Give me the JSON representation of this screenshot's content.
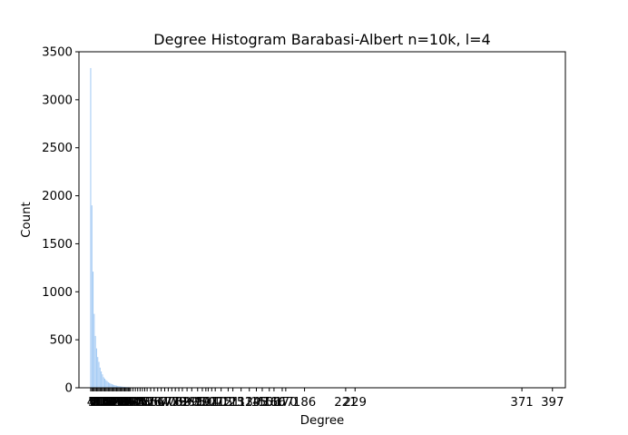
{
  "chart_data": {
    "type": "bar",
    "title": "Degree Histogram Barabasi-Albert n=10k, l=4",
    "xlabel": "Degree",
    "ylabel": "Count",
    "xlim": [
      -6,
      408
    ],
    "ylim": [
      0,
      3500
    ],
    "yticks": [
      0,
      500,
      1000,
      1500,
      2000,
      2500,
      3000,
      3500
    ],
    "bar_color": "#a1c9f4",
    "x": [
      4,
      5,
      6,
      7,
      8,
      9,
      10,
      11,
      12,
      13,
      14,
      15,
      16,
      17,
      18,
      19,
      20,
      21,
      22,
      23,
      24,
      25,
      26,
      27,
      28,
      29,
      30,
      31,
      32,
      33,
      34,
      35,
      36,
      37,
      38,
      40,
      42,
      44,
      46,
      48,
      50,
      52,
      55,
      58,
      61,
      64,
      67,
      70,
      73,
      76,
      79,
      82,
      86,
      90,
      95,
      99,
      102,
      104,
      107,
      110,
      115,
      121,
      125,
      132,
      139,
      145,
      150,
      156,
      160,
      167,
      170,
      186,
      221,
      229,
      371,
      397
    ],
    "values": [
      3330,
      1900,
      1210,
      770,
      540,
      410,
      320,
      270,
      210,
      170,
      140,
      110,
      95,
      80,
      70,
      58,
      50,
      44,
      38,
      33,
      28,
      25,
      22,
      19,
      17,
      15,
      13,
      12,
      10,
      9,
      8,
      7,
      7,
      6,
      5,
      5,
      4,
      4,
      3,
      3,
      3,
      2,
      2,
      2,
      2,
      2,
      1,
      1,
      1,
      1,
      1,
      1,
      1,
      1,
      1,
      1,
      1,
      1,
      1,
      1,
      1,
      1,
      1,
      1,
      1,
      1,
      1,
      1,
      1,
      1,
      1,
      1,
      1,
      1,
      1,
      1
    ],
    "xtick_labels": [
      "4",
      "5",
      "6",
      "7",
      "8",
      "9",
      "10",
      "11",
      "12",
      "13",
      "14",
      "15",
      "16",
      "17",
      "18",
      "19",
      "20",
      "21",
      "22",
      "23",
      "24",
      "25",
      "26",
      "27",
      "28",
      "29",
      "30",
      "31",
      "32",
      "33",
      "34",
      "35",
      "36",
      "37",
      "38",
      "40",
      "42",
      "44",
      "46",
      "48",
      "50",
      "52",
      "55",
      "58",
      "61",
      "64",
      "67",
      "70",
      "73",
      "76",
      "79",
      "82",
      "86",
      "90",
      "95",
      "99",
      "102",
      "104",
      "107",
      "110",
      "115",
      "121",
      "125",
      "132",
      "139",
      "145",
      "150",
      "156",
      "160",
      "167",
      "170",
      "186",
      "221",
      "229",
      "371",
      "397"
    ],
    "grid": false
  }
}
